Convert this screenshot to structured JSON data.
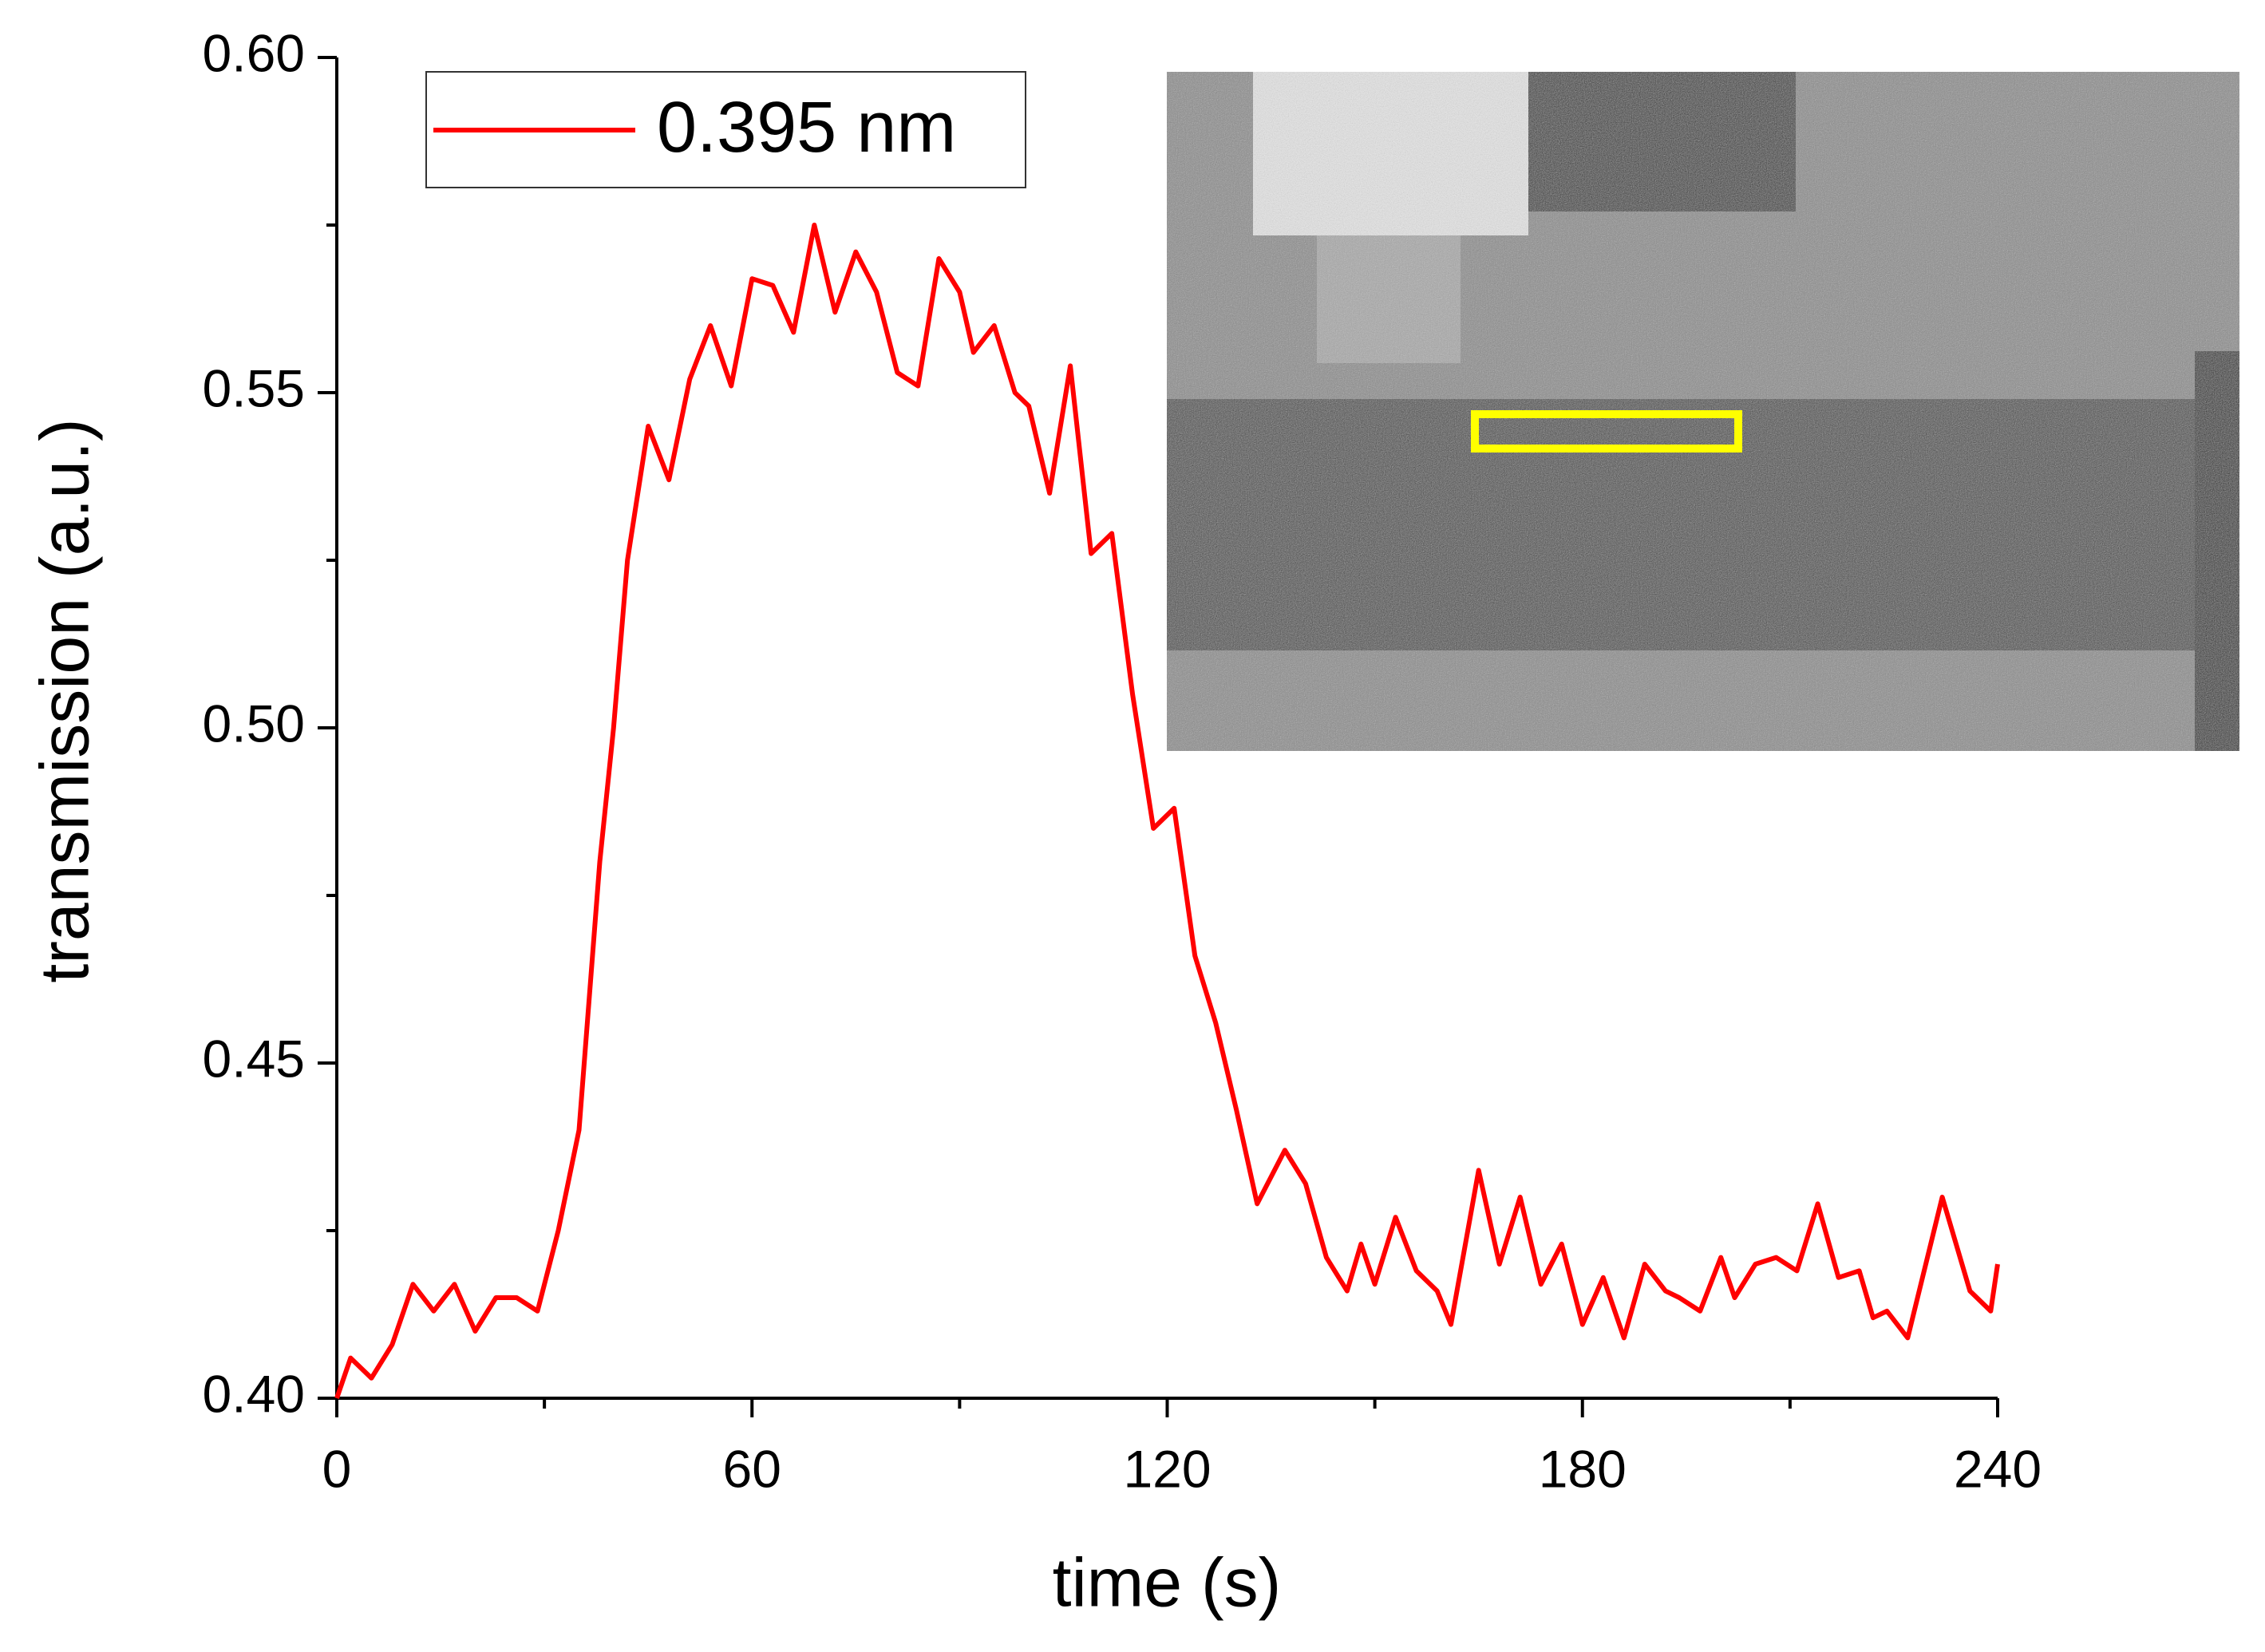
{
  "chart_data": {
    "type": "line",
    "xlabel": "time (s)",
    "ylabel": "transmission (a.u.)",
    "xlim": [
      0,
      240
    ],
    "xticks": [
      0,
      60,
      120,
      180,
      240
    ],
    "xminorticks": [
      30,
      90,
      150,
      210
    ],
    "ylim": [
      0.4,
      0.6
    ],
    "yticks": [
      {
        "value": 0.4,
        "label": "0.40"
      },
      0.45,
      {
        "value": 0.5,
        "label": "0.50"
      },
      0.55,
      {
        "value": 0.6,
        "label": "0.60"
      }
    ],
    "yminorticks": [
      0.425,
      0.475,
      0.525,
      0.575
    ],
    "legend": "upper left",
    "series": [
      {
        "name": "0.395 nm",
        "color": "#ff0000",
        "x": [
          0,
          2,
          5,
          8,
          11,
          14,
          17,
          20,
          23,
          26,
          29,
          32,
          35,
          38,
          40,
          42,
          45,
          48,
          51,
          54,
          57,
          60,
          63,
          66,
          69,
          72,
          75,
          78,
          81,
          84,
          87,
          90,
          92,
          95,
          98,
          100,
          103,
          106,
          109,
          112,
          115,
          118,
          121,
          124,
          127,
          130,
          133,
          137,
          140,
          143,
          146,
          148,
          150,
          153,
          156,
          159,
          161,
          165,
          168,
          171,
          174,
          177,
          180,
          183,
          186,
          189,
          192,
          194,
          197,
          200,
          202,
          205,
          208,
          211,
          214,
          217,
          220,
          222,
          224,
          227,
          232,
          236,
          239,
          240
        ],
        "values": [
          0.4,
          0.406,
          0.403,
          0.408,
          0.417,
          0.413,
          0.417,
          0.41,
          0.415,
          0.415,
          0.413,
          0.425,
          0.44,
          0.48,
          0.5,
          0.525,
          0.545,
          0.537,
          0.552,
          0.56,
          0.551,
          0.567,
          0.566,
          0.559,
          0.575,
          0.562,
          0.571,
          0.565,
          0.553,
          0.551,
          0.57,
          0.565,
          0.556,
          0.56,
          0.55,
          0.548,
          0.535,
          0.554,
          0.526,
          0.529,
          0.505,
          0.485,
          0.488,
          0.466,
          0.456,
          0.443,
          0.429,
          0.437,
          0.432,
          0.421,
          0.416,
          0.423,
          0.417,
          0.427,
          0.419,
          0.416,
          0.411,
          0.434,
          0.42,
          0.43,
          0.417,
          0.423,
          0.411,
          0.418,
          0.409,
          0.42,
          0.416,
          0.415,
          0.413,
          0.421,
          0.415,
          0.42,
          0.421,
          0.419,
          0.429,
          0.418,
          0.419,
          0.412,
          0.413,
          0.409,
          0.43,
          0.416,
          0.413,
          0.42
        ]
      }
    ]
  }
}
